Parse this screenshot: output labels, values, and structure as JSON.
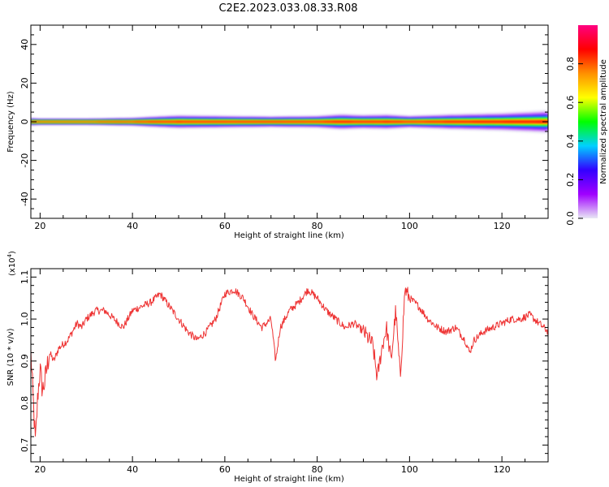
{
  "title": "C2E2.2023.033.08.33.R08",
  "chart_data": [
    {
      "type": "heatmap",
      "xlabel": "Height of straight line (km)",
      "ylabel": "Frequency (Hz)",
      "xlim": [
        18,
        130
      ],
      "ylim": [
        -50,
        50
      ],
      "x_ticks": [
        20,
        40,
        60,
        80,
        100,
        120
      ],
      "y_ticks": [
        -40,
        -20,
        0,
        20,
        40
      ],
      "band_center_hz": 0,
      "spread_profile": [
        [
          18,
          1.4
        ],
        [
          20,
          1.2
        ],
        [
          30,
          1.2
        ],
        [
          40,
          1.5
        ],
        [
          45,
          2.0
        ],
        [
          50,
          2.4
        ],
        [
          60,
          2.2
        ],
        [
          70,
          2.0
        ],
        [
          80,
          2.2
        ],
        [
          85,
          2.8
        ],
        [
          90,
          2.5
        ],
        [
          95,
          2.7
        ],
        [
          100,
          2.2
        ],
        [
          110,
          2.8
        ],
        [
          120,
          3.2
        ],
        [
          130,
          4.0
        ]
      ],
      "colorbar": {
        "label": "Normalized spectral amplitude",
        "range": [
          0,
          1
        ],
        "ticks": [
          "0.0",
          "0.2",
          "0.4",
          "0.6",
          "0.8"
        ],
        "tick_values": [
          0,
          0.2,
          0.4,
          0.6,
          0.8
        ],
        "colormap": [
          "#e8e8f4",
          "#a000ff",
          "#3300ff",
          "#00d0ff",
          "#00ff00",
          "#ffff00",
          "#ff9000",
          "#ff0000",
          "#ff0080"
        ]
      }
    },
    {
      "type": "line",
      "xlabel": "Height of straight line (km)",
      "ylabel": "SNR (10 * v/v)",
      "y_multiplier": "(x10",
      "y_multiplier_exp": "4",
      "y_multiplier_close": ")",
      "xlim": [
        18,
        130
      ],
      "ylim": [
        0.66,
        1.12
      ],
      "x_ticks": [
        20,
        40,
        60,
        80,
        100,
        120
      ],
      "y_ticks": [
        "0.7",
        "0.8",
        "0.9",
        "1.0",
        "1.1"
      ],
      "y_tick_values": [
        0.7,
        0.8,
        0.9,
        1.0,
        1.1
      ],
      "series_color": "#ee3333",
      "series": [
        {
          "x": [
            18,
            19,
            19.5,
            20,
            20.5,
            21,
            22,
            23,
            24,
            25,
            26,
            27,
            28,
            29,
            30,
            32,
            34,
            36,
            38,
            40,
            42,
            44,
            46,
            48,
            50,
            52,
            54,
            56,
            58,
            60,
            62,
            64,
            66,
            68,
            70,
            71,
            72,
            74,
            76,
            78,
            80,
            82,
            84,
            86,
            88,
            90,
            92,
            93,
            94,
            95,
            96,
            97,
            98,
            99,
            100,
            102,
            104,
            106,
            108,
            110,
            112,
            113,
            114,
            116,
            118,
            120,
            122,
            124,
            126,
            128,
            130
          ],
          "y": [
            0.92,
            0.7,
            0.82,
            0.88,
            0.83,
            0.85,
            0.92,
            0.9,
            0.93,
            0.94,
            0.95,
            0.97,
            0.99,
            0.98,
            1.0,
            1.02,
            1.02,
            1.0,
            0.98,
            1.02,
            1.03,
            1.04,
            1.06,
            1.03,
            1.0,
            0.97,
            0.95,
            0.97,
            1.0,
            1.06,
            1.07,
            1.05,
            1.01,
            0.98,
            1.0,
            0.9,
            0.98,
            1.02,
            1.04,
            1.07,
            1.05,
            1.02,
            1.0,
            0.98,
            0.99,
            0.97,
            0.94,
            0.86,
            0.93,
            0.98,
            0.9,
            1.02,
            0.86,
            1.07,
            1.05,
            1.03,
            1.0,
            0.98,
            0.97,
            0.98,
            0.95,
            0.92,
            0.95,
            0.97,
            0.98,
            0.99,
            1.0,
            1.0,
            1.01,
            0.99,
            0.97
          ]
        }
      ]
    }
  ]
}
